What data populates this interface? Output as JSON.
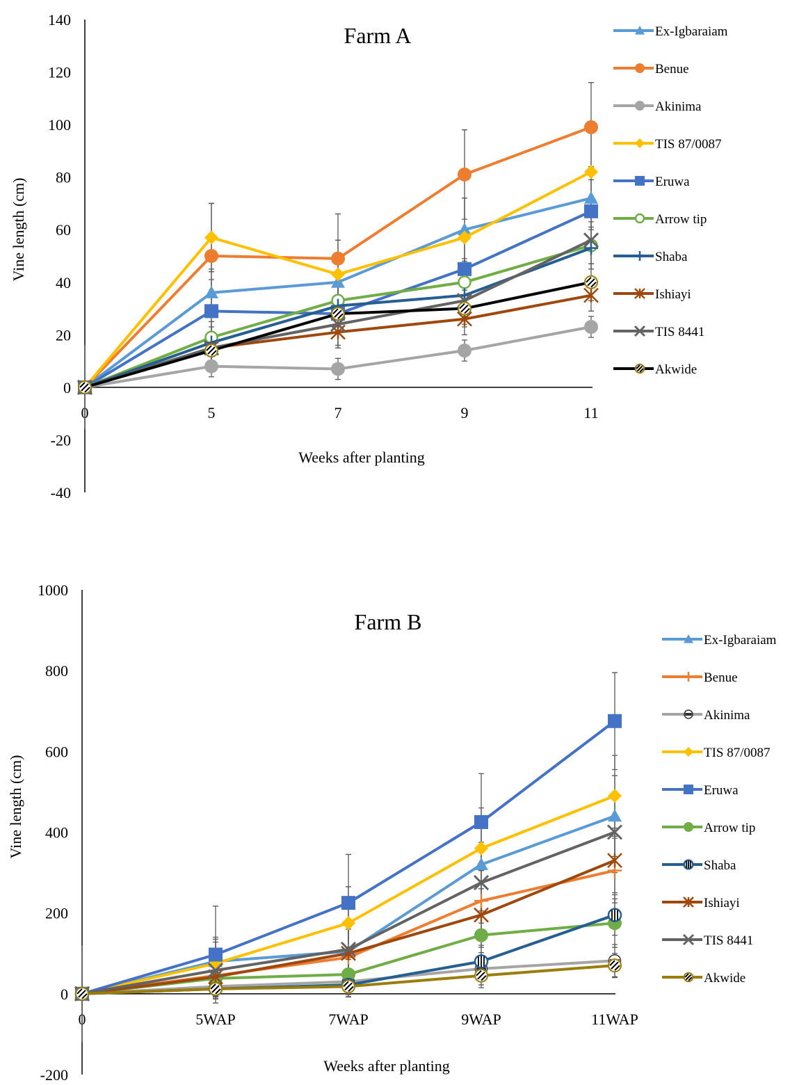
{
  "chart_data": [
    {
      "type": "line",
      "title": "Farm A",
      "xlabel": "Weeks after planting",
      "ylabel": "Vine length (cm)",
      "categories": [
        "0",
        "5",
        "7",
        "9",
        "11"
      ],
      "ylim": [
        -40,
        140
      ],
      "yticks": [
        -40,
        -20,
        0,
        20,
        40,
        60,
        80,
        100,
        120,
        140
      ],
      "grid": false,
      "legend": "right",
      "series": [
        {
          "name": "Ex-Igbaraiam",
          "color": "#5B9BD5",
          "marker": "triangle",
          "values": [
            0,
            36,
            40,
            60,
            72
          ],
          "err": [
            0,
            9,
            8,
            12,
            12
          ]
        },
        {
          "name": "Benue",
          "color": "#ED7D31",
          "marker": "circle",
          "values": [
            0,
            50,
            49,
            81,
            99
          ],
          "err": [
            0,
            20,
            17,
            17,
            17
          ]
        },
        {
          "name": "Akinima",
          "color": "#A5A5A5",
          "marker": "circle",
          "values": [
            0,
            8,
            7,
            14,
            23
          ],
          "err": [
            0,
            4,
            4,
            4,
            4
          ]
        },
        {
          "name": "TIS 87/0087",
          "color": "#FFC000",
          "marker": "diamond",
          "values": [
            0,
            57,
            43,
            57,
            82
          ],
          "err": [
            0,
            13,
            13,
            15,
            16
          ]
        },
        {
          "name": "Eruwa",
          "color": "#4472C4",
          "marker": "square",
          "values": [
            0,
            29,
            28,
            45,
            67
          ],
          "err": [
            0,
            12,
            12,
            12,
            12
          ]
        },
        {
          "name": "Arrow tip",
          "color": "#70AD47",
          "marker": "circle-open",
          "values": [
            0,
            19,
            33,
            40,
            54
          ],
          "err": [
            0,
            9,
            9,
            9,
            9
          ]
        },
        {
          "name": "Shaba",
          "color": "#255E91",
          "marker": "plus",
          "values": [
            0,
            17,
            31,
            35,
            53
          ],
          "err": [
            0,
            8,
            8,
            8,
            8
          ]
        },
        {
          "name": "Ishiayi",
          "color": "#9E480E",
          "marker": "star",
          "values": [
            0,
            15,
            21,
            26,
            35
          ],
          "err": [
            0,
            6,
            6,
            6,
            6
          ]
        },
        {
          "name": "TIS 8441",
          "color": "#636363",
          "marker": "x",
          "values": [
            0,
            15,
            24,
            33,
            56
          ],
          "err": [
            0,
            8,
            9,
            9,
            9
          ]
        },
        {
          "name": "Akwide",
          "color": "#000000",
          "marker": "hatched-circle",
          "values": [
            0,
            14,
            28,
            30,
            40
          ],
          "err": [
            0,
            7,
            7,
            7,
            7
          ]
        }
      ]
    },
    {
      "type": "line",
      "title": "Farm B",
      "xlabel": "Weeks after planting",
      "ylabel": "Vine length (cm)",
      "categories": [
        "0",
        "5WAP",
        "7WAP",
        "9WAP",
        "11WAP"
      ],
      "ylim": [
        -200,
        1000
      ],
      "yticks": [
        -200,
        0,
        200,
        400,
        600,
        800,
        1000
      ],
      "grid": false,
      "legend": "right",
      "series": [
        {
          "name": "Ex-Igbaraiam",
          "color": "#5B9BD5",
          "marker": "triangle",
          "values": [
            0,
            80,
            105,
            320,
            440
          ],
          "err": [
            0,
            60,
            80,
            90,
            100
          ]
        },
        {
          "name": "Benue",
          "color": "#ED7D31",
          "marker": "plus",
          "values": [
            0,
            45,
            90,
            230,
            305
          ],
          "err": [
            0,
            50,
            70,
            80,
            80
          ]
        },
        {
          "name": "Akinima",
          "color": "#A5A5A5",
          "marker": "circle-half",
          "values": [
            0,
            18,
            30,
            62,
            82
          ],
          "err": [
            0,
            25,
            30,
            40,
            40
          ]
        },
        {
          "name": "TIS 87/0087",
          "color": "#FFC000",
          "marker": "diamond",
          "values": [
            0,
            75,
            175,
            360,
            490
          ],
          "err": [
            0,
            60,
            90,
            100,
            100
          ]
        },
        {
          "name": "Eruwa",
          "color": "#4472C4",
          "marker": "square",
          "values": [
            0,
            97,
            225,
            425,
            675
          ],
          "err": [
            0,
            120,
            120,
            120,
            120
          ]
        },
        {
          "name": "Arrow tip",
          "color": "#70AD47",
          "marker": "circle",
          "values": [
            0,
            38,
            48,
            145,
            175
          ],
          "err": [
            0,
            40,
            50,
            60,
            60
          ]
        },
        {
          "name": "Shaba",
          "color": "#255E91",
          "marker": "striped-circle",
          "values": [
            0,
            12,
            22,
            80,
            195
          ],
          "err": [
            0,
            25,
            30,
            40,
            50
          ]
        },
        {
          "name": "Ishiayi",
          "color": "#9E480E",
          "marker": "star",
          "values": [
            0,
            42,
            100,
            195,
            330
          ],
          "err": [
            0,
            50,
            70,
            80,
            80
          ]
        },
        {
          "name": "TIS 8441",
          "color": "#636363",
          "marker": "x",
          "values": [
            0,
            58,
            110,
            275,
            400
          ],
          "err": [
            0,
            70,
            100,
            100,
            100
          ]
        },
        {
          "name": "Akwide",
          "color": "#9A7D0A",
          "marker": "hatched-circle",
          "values": [
            0,
            12,
            18,
            45,
            70
          ],
          "err": [
            0,
            20,
            25,
            30,
            30
          ]
        }
      ]
    }
  ]
}
